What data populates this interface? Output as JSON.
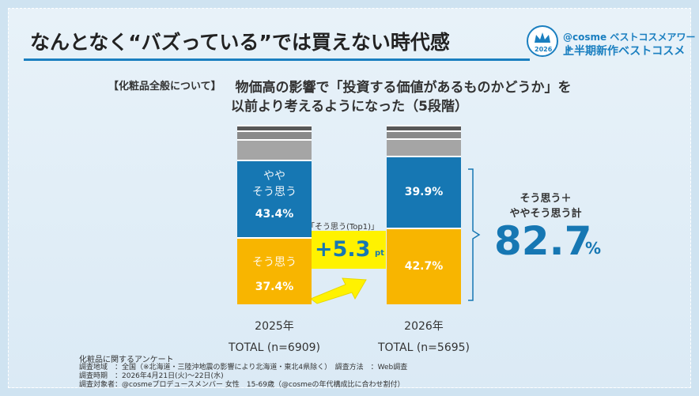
{
  "header": {
    "title": "なんとなく“バズっている”では買えない時代感",
    "logo_year": "2026",
    "logo_line1": "@cosme ベストコスメアワード",
    "logo_line2": "上半期新作ベストコスメ"
  },
  "chart_data": {
    "type": "bar",
    "stacked": true,
    "subtitle_tag": "【化粧品全般について】",
    "subtitle": [
      "物価高の影響で「投資する価値があるものかどうか」を",
      "以前より考えるようになった（5段階）"
    ],
    "categories": [
      "2025年",
      "2026年"
    ],
    "sample_labels": [
      "TOTAL (n=6909)",
      "TOTAL (n=5695)"
    ],
    "ylim": [
      0,
      100
    ],
    "series": [
      {
        "name": "そう思う",
        "color": "#f8b500",
        "values": [
          37.4,
          42.7
        ],
        "value_labels": [
          "37.4%",
          "42.7%"
        ]
      },
      {
        "name": "やや\nそう思う",
        "color": "#1677b3",
        "values": [
          43.4,
          39.9
        ],
        "value_labels": [
          "43.4%",
          "39.9%"
        ]
      },
      {
        "color": "#a5a5a5",
        "values": [
          11.2,
          9.8
        ]
      },
      {
        "color": "#8a8a8a",
        "values": [
          4.8,
          4.5
        ]
      },
      {
        "color": "#585858",
        "values": [
          3.2,
          3.0
        ]
      }
    ],
    "annotations": {
      "top1_label": "「そう思う(Top1)」",
      "diff": "+5.3",
      "diff_unit": "pt",
      "total_label": "そう思う＋\nややそう思う計",
      "total": "82.7",
      "total_unit": "%"
    }
  },
  "footnotes": [
    "化粧品に関するアンケート",
    "調査地域　：全国（※北海道・三陸沖地震の影響により北海道・東北4県除く）　調査方法　：Web調査",
    "調査時期　：2026年4月21日(火)～22日(水)",
    "調査対象者：@cosmeプロデュースメンバー 女性　15-69歳（@cosmeの年代構成比に合わせ割付）"
  ]
}
